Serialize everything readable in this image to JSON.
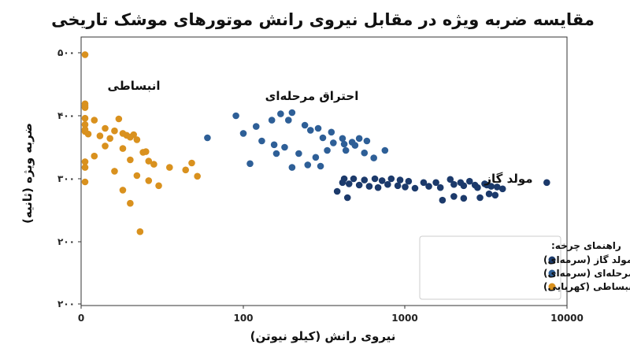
{
  "chart_data": {
    "type": "scatter",
    "title": "مقایسه ضربه ویژه در مقابل نیروی رانش موتورهای موشک تاریخی",
    "xlabel": "نیروی رانش (کیلو نیوتن)",
    "ylabel": "ضربه ویژه (ثانیه)",
    "x_scale": "log",
    "x_ticks": [
      "0",
      "100",
      "1000",
      "10000"
    ],
    "y_ticks": [
      "۲۰۰",
      "۲۰۰",
      "۳۰۰",
      "۴۰۰",
      "۵۰۰"
    ],
    "legend": {
      "title": "راهنمای چرخه:",
      "position": "bottom-right",
      "entries": [
        "مولد گاز (سرمه‌ای)",
        "احتراق مرحله‌ای (سرمه‌ای)",
        "انبساطی (کهربایی)"
      ]
    },
    "annotations": [
      {
        "text": "انبساطی",
        "series": 2
      },
      {
        "text": "احتراق مرحله‌ای",
        "series": 1
      },
      {
        "text": "مولد گاز",
        "series": 0
      }
    ],
    "series": [
      {
        "name": "مولد گاز (سرمه‌ای)",
        "color": "#1c3a6b",
        "points": [
          [
            420,
            300
          ],
          [
            480,
            300
          ],
          [
            560,
            298
          ],
          [
            650,
            300
          ],
          [
            720,
            297
          ],
          [
            820,
            300
          ],
          [
            930,
            298
          ],
          [
            1050,
            296
          ],
          [
            1300,
            294
          ],
          [
            1550,
            294
          ],
          [
            1900,
            299
          ],
          [
            2200,
            294
          ],
          [
            2500,
            296
          ],
          [
            2700,
            290
          ],
          [
            3100,
            292
          ],
          [
            3400,
            288
          ],
          [
            4000,
            284
          ],
          [
            7500,
            294
          ],
          [
            410,
            294
          ],
          [
            450,
            292
          ],
          [
            520,
            290
          ],
          [
            600,
            288
          ],
          [
            680,
            286
          ],
          [
            780,
            291
          ],
          [
            900,
            289
          ],
          [
            1000,
            287
          ],
          [
            1150,
            285
          ],
          [
            1400,
            288
          ],
          [
            1650,
            286
          ],
          [
            2000,
            291
          ],
          [
            2300,
            289
          ],
          [
            2800,
            286
          ],
          [
            3200,
            290
          ],
          [
            3700,
            287
          ],
          [
            380,
            280
          ],
          [
            440,
            270
          ],
          [
            1700,
            266
          ],
          [
            2000,
            272
          ],
          [
            2300,
            269
          ],
          [
            2900,
            270
          ],
          [
            3300,
            276
          ],
          [
            3600,
            274
          ]
        ]
      },
      {
        "name": "احتراق مرحله‌ای (سرمه‌ای)",
        "color": "#2e5f97",
        "points": [
          [
            190,
            393
          ],
          [
            240,
            385
          ],
          [
            290,
            380
          ],
          [
            350,
            374
          ],
          [
            410,
            364
          ],
          [
            470,
            358
          ],
          [
            520,
            364
          ],
          [
            580,
            360
          ],
          [
            60,
            365
          ],
          [
            90,
            400
          ],
          [
            120,
            383
          ],
          [
            150,
            393
          ],
          [
            170,
            403
          ],
          [
            200,
            405
          ],
          [
            260,
            377
          ],
          [
            310,
            365
          ],
          [
            360,
            357
          ],
          [
            430,
            345
          ],
          [
            490,
            353
          ],
          [
            560,
            341
          ],
          [
            640,
            333
          ],
          [
            750,
            345
          ],
          [
            100,
            372
          ],
          [
            130,
            360
          ],
          [
            155,
            354
          ],
          [
            180,
            350
          ],
          [
            220,
            340
          ],
          [
            280,
            334
          ],
          [
            330,
            345
          ],
          [
            420,
            355
          ],
          [
            110,
            324
          ],
          [
            160,
            340
          ],
          [
            200,
            318
          ],
          [
            250,
            322
          ],
          [
            300,
            320
          ]
        ]
      },
      {
        "name": "انبساطی (کهربایی)",
        "color": "#d9911e",
        "points": [
          [
            2,
            497
          ],
          [
            3.0,
            419
          ],
          [
            7,
            413
          ],
          [
            9,
            416
          ],
          [
            7,
            396
          ],
          [
            12,
            393
          ],
          [
            8,
            386
          ],
          [
            17,
            395
          ],
          [
            10,
            378
          ],
          [
            14,
            380
          ],
          [
            16,
            376
          ],
          [
            18,
            372
          ],
          [
            19,
            369
          ],
          [
            21,
            370
          ],
          [
            20,
            366
          ],
          [
            13,
            368
          ],
          [
            15,
            364
          ],
          [
            11,
            371
          ],
          [
            22,
            362
          ],
          [
            14,
            352
          ],
          [
            18,
            348
          ],
          [
            24,
            342
          ],
          [
            25,
            343
          ],
          [
            12,
            336
          ],
          [
            20,
            330
          ],
          [
            26,
            328
          ],
          [
            28,
            323
          ],
          [
            9,
            318
          ],
          [
            16,
            312
          ],
          [
            22,
            305
          ],
          [
            26,
            297
          ],
          [
            30,
            289
          ],
          [
            18,
            282
          ],
          [
            20,
            261
          ],
          [
            23,
            216
          ],
          [
            3,
            327
          ],
          [
            2.5,
            295
          ],
          [
            2,
            375
          ],
          [
            35,
            318
          ],
          [
            48,
            325
          ],
          [
            52,
            304
          ],
          [
            44,
            314
          ]
        ]
      }
    ]
  }
}
